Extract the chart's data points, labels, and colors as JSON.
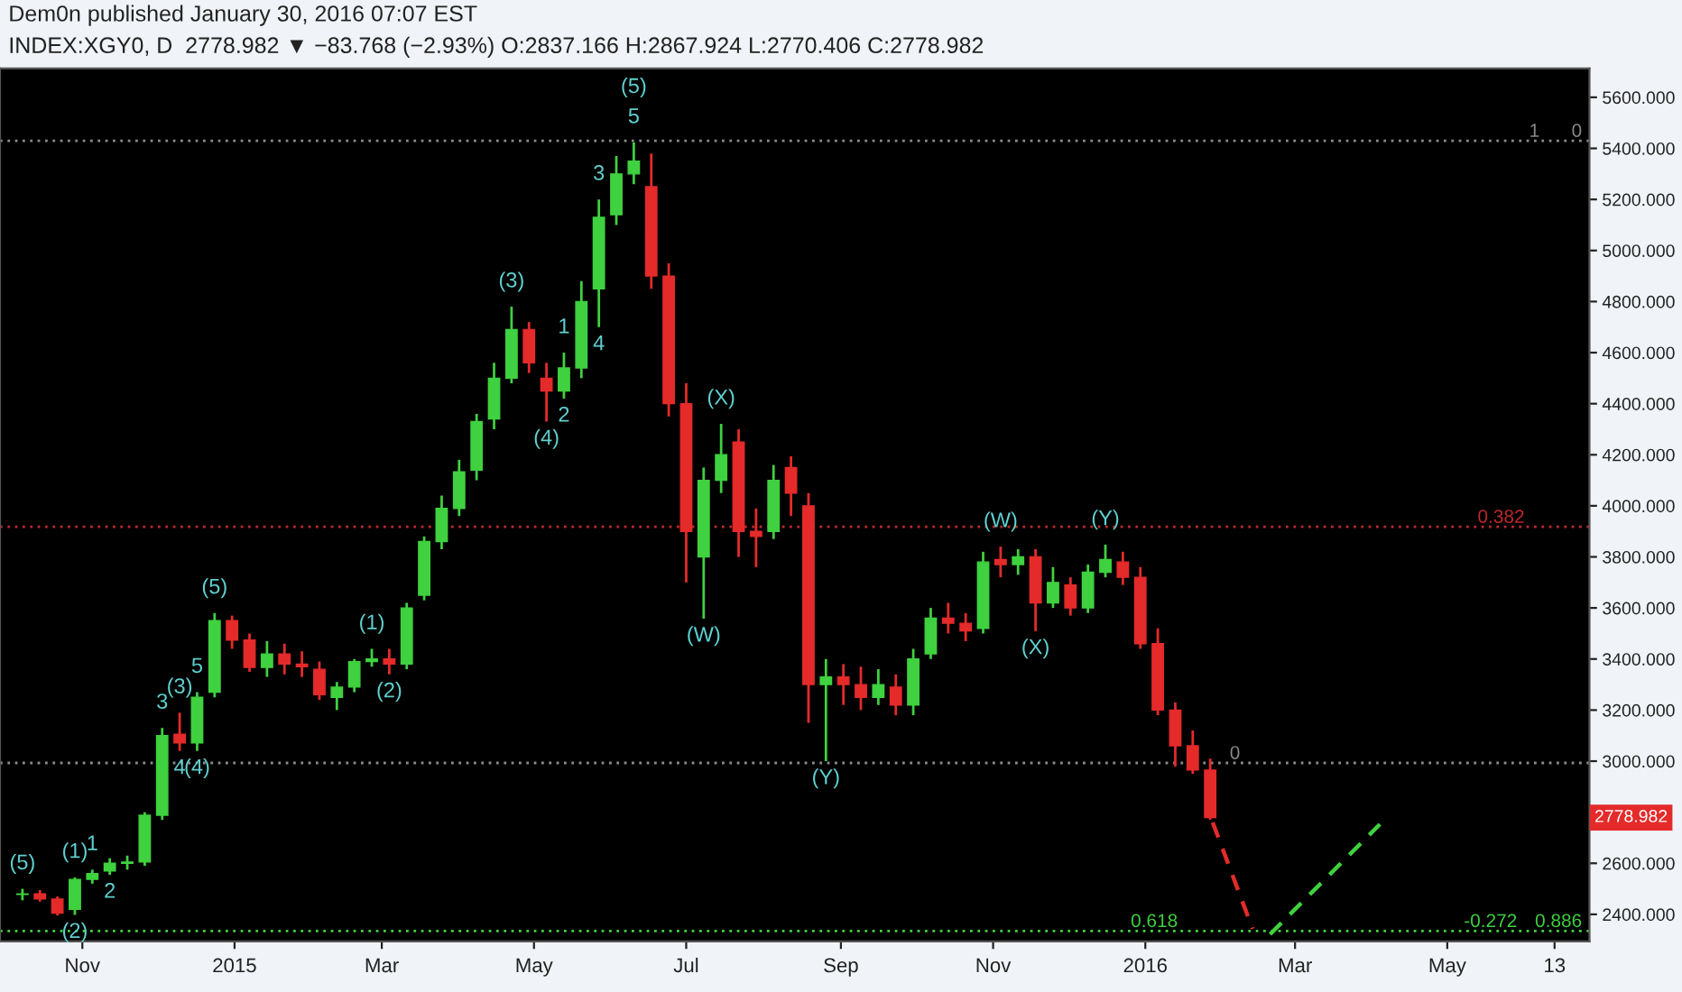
{
  "chart_data": {
    "type": "candlestick",
    "title": "INDEX:XGY0, D  2778.982 ▼ −83.768 (−2.93%) O:2837.166 H:2867.924 L:2770.406 C:2778.982",
    "subtitle": "Dem0n published January 30, 2016 07:07 EST",
    "x": [
      "2014-10-08",
      "2014-10-15",
      "2014-10-22",
      "2014-10-29",
      "2014-11-05",
      "2014-11-12",
      "2014-11-19",
      "2014-11-26",
      "2014-12-03",
      "2014-12-10",
      "2014-12-17",
      "2014-12-24",
      "2014-12-31",
      "2015-01-07",
      "2015-01-14",
      "2015-01-21",
      "2015-01-28",
      "2015-02-04",
      "2015-02-11",
      "2015-02-18",
      "2015-02-25",
      "2015-03-04",
      "2015-03-11",
      "2015-03-18",
      "2015-03-25",
      "2015-04-01",
      "2015-04-08",
      "2015-04-15",
      "2015-04-22",
      "2015-04-29",
      "2015-05-06",
      "2015-05-13",
      "2015-05-20",
      "2015-05-27",
      "2015-06-03",
      "2015-06-10",
      "2015-06-17",
      "2015-06-24",
      "2015-07-01",
      "2015-07-08",
      "2015-07-15",
      "2015-07-22",
      "2015-07-29",
      "2015-08-05",
      "2015-08-12",
      "2015-08-19",
      "2015-08-26",
      "2015-09-02",
      "2015-09-09",
      "2015-09-16",
      "2015-09-23",
      "2015-09-30",
      "2015-10-07",
      "2015-10-14",
      "2015-10-21",
      "2015-10-28",
      "2015-11-04",
      "2015-11-11",
      "2015-11-18",
      "2015-11-25",
      "2015-12-02",
      "2015-12-09",
      "2015-12-16",
      "2015-12-23",
      "2015-12-30",
      "2016-01-06",
      "2016-01-13",
      "2016-01-20",
      "2016-01-27"
    ],
    "ohlc": [
      [
        2478,
        2500,
        2455,
        2480
      ],
      [
        2480,
        2495,
        2450,
        2460
      ],
      [
        2460,
        2470,
        2395,
        2405
      ],
      [
        2420,
        2545,
        2398,
        2537
      ],
      [
        2537,
        2575,
        2520,
        2560
      ],
      [
        2570,
        2620,
        2555,
        2600
      ],
      [
        2600,
        2630,
        2575,
        2605
      ],
      [
        2605,
        2800,
        2590,
        2788
      ],
      [
        2788,
        3130,
        2770,
        3100
      ],
      [
        3105,
        3190,
        3040,
        3071
      ],
      [
        3071,
        3270,
        3040,
        3250
      ],
      [
        3270,
        3580,
        3250,
        3550
      ],
      [
        3550,
        3570,
        3440,
        3474
      ],
      [
        3474,
        3500,
        3350,
        3367
      ],
      [
        3367,
        3470,
        3330,
        3420
      ],
      [
        3420,
        3460,
        3340,
        3380
      ],
      [
        3380,
        3430,
        3330,
        3370
      ],
      [
        3360,
        3390,
        3240,
        3260
      ],
      [
        3250,
        3310,
        3200,
        3290
      ],
      [
        3290,
        3400,
        3270,
        3390
      ],
      [
        3390,
        3440,
        3370,
        3400
      ],
      [
        3400,
        3440,
        3340,
        3380
      ],
      [
        3380,
        3620,
        3360,
        3600
      ],
      [
        3650,
        3880,
        3630,
        3860
      ],
      [
        3860,
        4040,
        3830,
        3990
      ],
      [
        3990,
        4180,
        3960,
        4133
      ],
      [
        4140,
        4360,
        4100,
        4330
      ],
      [
        4340,
        4560,
        4300,
        4500
      ],
      [
        4500,
        4780,
        4480,
        4690
      ],
      [
        4690,
        4720,
        4520,
        4560
      ],
      [
        4500,
        4560,
        4330,
        4450
      ],
      [
        4450,
        4600,
        4420,
        4540
      ],
      [
        4540,
        4880,
        4500,
        4800
      ],
      [
        4850,
        5200,
        4700,
        5130
      ],
      [
        5140,
        5370,
        5100,
        5300
      ],
      [
        5300,
        5423,
        5260,
        5350
      ],
      [
        5250,
        5380,
        4850,
        4900
      ],
      [
        4900,
        4950,
        4350,
        4400
      ],
      [
        4400,
        4480,
        3700,
        3900
      ],
      [
        3800,
        4150,
        3558,
        4100
      ],
      [
        4100,
        4321,
        4050,
        4200
      ],
      [
        4250,
        4300,
        3800,
        3900
      ],
      [
        3900,
        3990,
        3760,
        3880
      ],
      [
        3900,
        4160,
        3870,
        4100
      ],
      [
        4150,
        4194,
        3960,
        4050
      ],
      [
        4000,
        4050,
        3150,
        3300
      ],
      [
        3300,
        3400,
        3000,
        3330
      ],
      [
        3330,
        3380,
        3220,
        3300
      ],
      [
        3300,
        3370,
        3200,
        3250
      ],
      [
        3250,
        3360,
        3220,
        3300
      ],
      [
        3290,
        3340,
        3180,
        3220
      ],
      [
        3220,
        3440,
        3180,
        3400
      ],
      [
        3420,
        3600,
        3400,
        3560
      ],
      [
        3560,
        3620,
        3500,
        3540
      ],
      [
        3540,
        3580,
        3470,
        3510
      ],
      [
        3520,
        3820,
        3500,
        3780
      ],
      [
        3790,
        3840,
        3720,
        3770
      ],
      [
        3770,
        3830,
        3730,
        3800
      ],
      [
        3800,
        3830,
        3509,
        3620
      ],
      [
        3620,
        3760,
        3600,
        3700
      ],
      [
        3690,
        3720,
        3570,
        3600
      ],
      [
        3600,
        3770,
        3580,
        3740
      ],
      [
        3740,
        3848,
        3720,
        3790
      ],
      [
        3780,
        3820,
        3690,
        3720
      ],
      [
        3720,
        3760,
        3440,
        3460
      ],
      [
        3460,
        3520,
        3180,
        3200
      ],
      [
        3200,
        3230,
        2979,
        3060
      ],
      [
        3060,
        3120,
        2950,
        2965
      ],
      [
        2965,
        3010,
        2770,
        2779
      ]
    ],
    "colors": [
      "#3fd13f",
      "#e52a2a",
      "#e52a2a",
      "#3fd13f",
      "#3fd13f",
      "#3fd13f",
      "#3fd13f",
      "#3fd13f",
      "#3fd13f",
      "#e52a2a",
      "#3fd13f",
      "#3fd13f",
      "#e52a2a",
      "#e52a2a",
      "#3fd13f",
      "#e52a2a",
      "#e52a2a",
      "#e52a2a",
      "#3fd13f",
      "#3fd13f",
      "#3fd13f",
      "#e52a2a",
      "#3fd13f",
      "#3fd13f",
      "#3fd13f",
      "#3fd13f",
      "#3fd13f",
      "#3fd13f",
      "#3fd13f",
      "#e52a2a",
      "#e52a2a",
      "#3fd13f",
      "#3fd13f",
      "#3fd13f",
      "#3fd13f",
      "#3fd13f",
      "#e52a2a",
      "#e52a2a",
      "#e52a2a",
      "#3fd13f",
      "#3fd13f",
      "#e52a2a",
      "#e52a2a",
      "#3fd13f",
      "#e52a2a",
      "#e52a2a",
      "#3fd13f",
      "#e52a2a",
      "#e52a2a",
      "#3fd13f",
      "#e52a2a",
      "#3fd13f",
      "#3fd13f",
      "#e52a2a",
      "#e52a2a",
      "#3fd13f",
      "#e52a2a",
      "#3fd13f",
      "#e52a2a",
      "#3fd13f",
      "#e52a2a",
      "#3fd13f",
      "#3fd13f",
      "#e52a2a",
      "#e52a2a",
      "#e52a2a",
      "#e52a2a",
      "#e52a2a",
      "#e52a2a"
    ],
    "series": [
      {
        "type": "line",
        "x": [
          "2016-01-28",
          "2016-02-13"
        ],
        "values": [
          2760,
          2343
        ],
        "color": "#e52a2a",
        "line_style": "dashed"
      },
      {
        "type": "line",
        "x": [
          "2016-02-20",
          "2016-04-04"
        ],
        "values": [
          2322,
          2753
        ],
        "color": "#3fd13f",
        "line_style": "dashed"
      }
    ],
    "ref_lines": [
      {
        "axis": "y",
        "value": 5430,
        "color": "#8a8a8a",
        "line_style": "dotted"
      },
      {
        "axis": "y",
        "value": 3918,
        "color": "#c0282a",
        "line_style": "dotted"
      },
      {
        "axis": "y",
        "value": 2993,
        "color": "#8a8a8a",
        "line_style": "dotted"
      },
      {
        "axis": "y",
        "value": 2335,
        "color": "#3fd13f",
        "line_style": "dotted"
      }
    ],
    "annotations": [
      {
        "text": "1",
        "x": "2016-06-07",
        "y": 5430
      },
      {
        "text": "0",
        "x": "2016-06-24",
        "y": 5430
      },
      {
        "text": "0.382",
        "x": "2016-06-01",
        "y": 3918
      },
      {
        "text": "0",
        "x": "2016-02-08",
        "y": 2993
      },
      {
        "text": "0.618",
        "x": "2016-01-14",
        "y": 2335
      },
      {
        "text": "-0.272",
        "x": "2016-05-29",
        "y": 2335
      },
      {
        "text": "0.886",
        "x": "2016-06-24",
        "y": 2335
      },
      {
        "text": "(5)",
        "x": "2014-10-08",
        "y": 2500
      },
      {
        "text": "(1)",
        "x": "2014-10-29",
        "y": 2545
      },
      {
        "text": "(2)",
        "x": "2014-10-29",
        "y": 2398
      },
      {
        "text": "1",
        "x": "2014-11-05",
        "y": 2575
      },
      {
        "text": "2",
        "x": "2014-11-12",
        "y": 2555
      },
      {
        "text": "3",
        "x": "2014-12-03",
        "y": 3130
      },
      {
        "text": "4",
        "x": "2014-12-10",
        "y": 3040
      },
      {
        "text": "(3)",
        "x": "2014-12-10",
        "y": 3190
      },
      {
        "text": "5",
        "x": "2014-12-17",
        "y": 3270
      },
      {
        "text": "(4)",
        "x": "2014-12-17",
        "y": 3040
      },
      {
        "text": "(5)",
        "x": "2014-12-24",
        "y": 3580
      },
      {
        "text": "(1)",
        "x": "2015-02-25",
        "y": 3440
      },
      {
        "text": "(2)",
        "x": "2015-03-04",
        "y": 3340
      },
      {
        "text": "(3)",
        "x": "2015-04-22",
        "y": 4780
      },
      {
        "text": "(4)",
        "x": "2015-05-06",
        "y": 4330
      },
      {
        "text": "1",
        "x": "2015-05-13",
        "y": 4600
      },
      {
        "text": "2",
        "x": "2015-05-13",
        "y": 4420
      },
      {
        "text": "3",
        "x": "2015-05-27",
        "y": 5200
      },
      {
        "text": "4",
        "x": "2015-05-27",
        "y": 4700
      },
      {
        "text": "5",
        "x": "2015-06-10",
        "y": 5423
      },
      {
        "text": "(5)",
        "x": "2015-06-10",
        "y": 5423
      },
      {
        "text": "(W)",
        "x": "2015-07-08",
        "y": 3558
      },
      {
        "text": "(X)",
        "x": "2015-07-15",
        "y": 4321
      },
      {
        "text": "(Y)",
        "x": "2015-08-26",
        "y": 3000
      },
      {
        "text": "(W)",
        "x": "2015-11-04",
        "y": 3840
      },
      {
        "text": "(X)",
        "x": "2015-11-18",
        "y": 3509
      },
      {
        "text": "(Y)",
        "x": "2015-12-16",
        "y": 3848
      },
      "2778.982"
    ],
    "xlim": [
      "2014-09-29",
      "2016-06-27"
    ],
    "xticks": [
      {
        "value": "2014-11-01",
        "label": "Nov"
      },
      {
        "value": "2015-01-01",
        "label": "2015"
      },
      {
        "value": "2015-03-01",
        "label": "Mar"
      },
      {
        "value": "2015-05-01",
        "label": "May"
      },
      {
        "value": "2015-07-01",
        "label": "Jul"
      },
      {
        "value": "2015-09-01",
        "label": "Sep"
      },
      {
        "value": "2015-11-01",
        "label": "Nov"
      },
      {
        "value": "2016-01-01",
        "label": "2016"
      },
      {
        "value": "2016-03-01",
        "label": "Mar"
      },
      {
        "value": "2016-05-01",
        "label": "May"
      },
      {
        "value": "2016-06-13",
        "label": "13"
      }
    ],
    "ylim": [
      2294,
      5713
    ],
    "yticks": [
      {
        "value": 2400,
        "label": "2400.000"
      },
      {
        "value": 2600,
        "label": "2600.000"
      },
      {
        "value": 2800,
        "label": null
      },
      {
        "value": 3000,
        "label": "3000.000"
      },
      {
        "value": 3200,
        "label": "3200.000"
      },
      {
        "value": 3400,
        "label": "3400.000"
      },
      {
        "value": 3600,
        "label": "3600.000"
      },
      {
        "value": 3800,
        "label": "3800.000"
      },
      {
        "value": 4000,
        "label": "4000.000"
      },
      {
        "value": 4200,
        "label": "4200.000"
      },
      {
        "value": 4400,
        "label": "4400.000"
      },
      {
        "value": 4600,
        "label": "4600.000"
      },
      {
        "value": 4800,
        "label": "4800.000"
      },
      {
        "value": 5000,
        "label": "5000.000"
      },
      {
        "value": 5200,
        "label": "5200.000"
      },
      {
        "value": 5400,
        "label": "5400.000"
      },
      {
        "value": 5600,
        "label": "5600.000"
      }
    ]
  }
}
